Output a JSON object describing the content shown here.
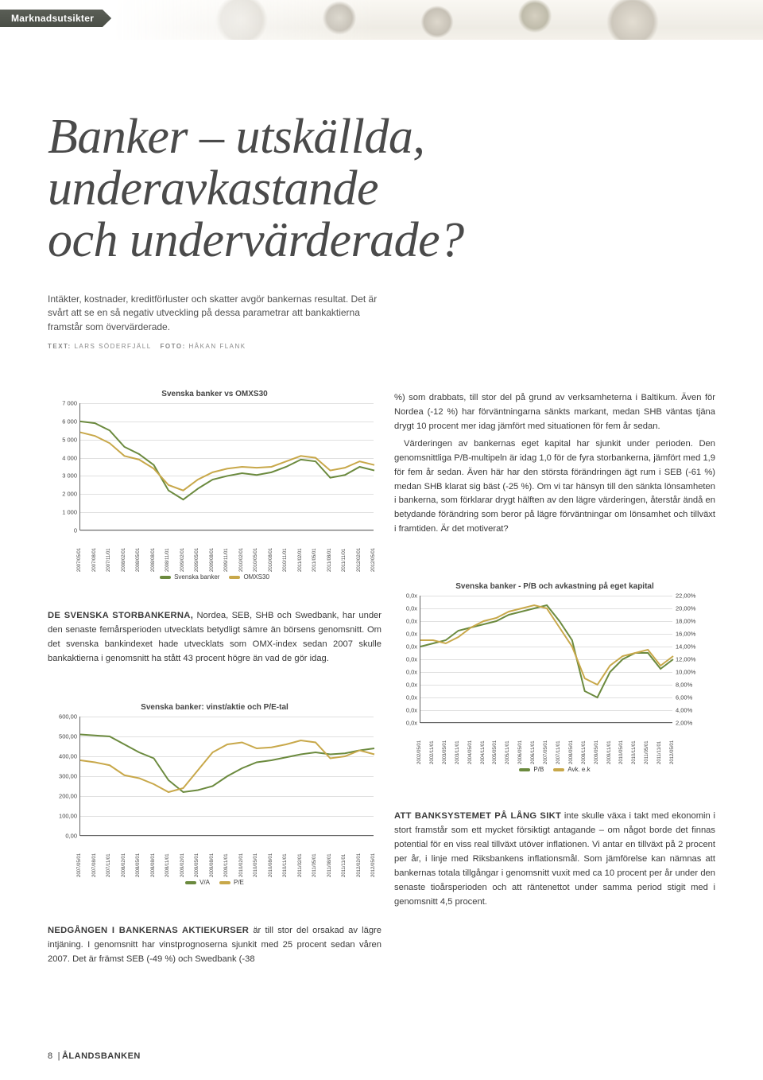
{
  "header_tag": "Marknadsutsikter",
  "title_line1": "Banker – utskällda,",
  "title_line2": "underavkastande",
  "title_line3": "och undervärderade?",
  "intro_text": "Intäkter, kostnader, kreditförluster och skatter avgör bankernas resultat. Det är svårt att se en så negativ utveckling på dessa parametrar att bankaktierna framstår som övervärderade.",
  "byline_label_text": "TEXT:",
  "byline_author": "LARS SÖDERFJÄLL",
  "byline_label_photo": "FOTO:",
  "byline_photographer": "HÅKAN FLANK",
  "chart1": {
    "title": "Svenska banker vs OMXS30",
    "type": "line",
    "y_ticks": [
      0,
      1000,
      2000,
      3000,
      4000,
      5000,
      6000,
      7000
    ],
    "y_tick_labels": [
      "0",
      "1 000",
      "2 000",
      "3 000",
      "4 000",
      "5 000",
      "6 000",
      "7 000"
    ],
    "ylim": [
      0,
      7000
    ],
    "x_labels": [
      "2007/05/01",
      "2007/08/01",
      "2007/11/01",
      "2008/02/01",
      "2008/05/01",
      "2008/08/01",
      "2008/11/01",
      "2009/02/01",
      "2009/05/01",
      "2009/08/01",
      "2009/11/01",
      "2010/02/01",
      "2010/05/01",
      "2010/08/01",
      "2010/11/01",
      "2011/02/01",
      "2011/05/01",
      "2011/08/01",
      "2011/11/01",
      "2012/02/01",
      "2012/05/01"
    ],
    "series": [
      {
        "name": "Svenska banker",
        "legend": "Svenska banker",
        "color": "#6b8a3e",
        "values": [
          6000,
          5900,
          5500,
          4600,
          4200,
          3600,
          2200,
          1700,
          2300,
          2800,
          3000,
          3150,
          3050,
          3200,
          3500,
          3900,
          3800,
          2900,
          3050,
          3500,
          3300
        ]
      },
      {
        "name": "OMXS30",
        "legend": "OMXS30",
        "color": "#c8a84a",
        "values": [
          5400,
          5200,
          4800,
          4100,
          3900,
          3400,
          2500,
          2200,
          2800,
          3200,
          3400,
          3500,
          3450,
          3500,
          3800,
          4100,
          4000,
          3300,
          3450,
          3800,
          3600
        ]
      }
    ],
    "grid_color": "#e0e0e0",
    "background": "#ffffff",
    "label_fontsize": 7
  },
  "body_left1": {
    "lead": "DE SVENSKA STORBANKERNA,",
    "text": " Nordea, SEB, SHB och Swedbank, har under den senaste femårsperioden utvecklats betydligt sämre än börsens genomsnitt. Om det svenska bankindexet hade utvecklats som OMX-index sedan 2007 skulle bankaktierna i genomsnitt ha stått 43 procent högre än vad de gör idag."
  },
  "chart2": {
    "title": "Svenska banker: vinst/aktie och P/E-tal",
    "type": "line",
    "y_ticks": [
      0,
      100,
      200,
      300,
      400,
      500,
      600
    ],
    "y_tick_labels": [
      "0,00",
      "100,00",
      "200,00",
      "300,00",
      "400,00",
      "500,00",
      "600,00"
    ],
    "ylim": [
      0,
      600
    ],
    "x_labels": [
      "2007/05/01",
      "2007/08/01",
      "2007/11/01",
      "2008/02/01",
      "2008/05/01",
      "2008/08/01",
      "2008/11/01",
      "2009/02/01",
      "2009/05/01",
      "2009/08/01",
      "2009/11/01",
      "2010/02/01",
      "2010/05/01",
      "2010/08/01",
      "2010/11/01",
      "2011/02/01",
      "2011/05/01",
      "2011/08/01",
      "2011/11/01",
      "2012/02/01",
      "2012/05/01"
    ],
    "series": [
      {
        "name": "V/A",
        "legend": "V/A",
        "color": "#6b8a3e",
        "values": [
          510,
          505,
          500,
          460,
          420,
          390,
          280,
          220,
          230,
          250,
          300,
          340,
          370,
          380,
          395,
          410,
          420,
          410,
          415,
          430,
          440
        ]
      },
      {
        "name": "P/E",
        "legend": "P/E",
        "color": "#c8a84a",
        "values": [
          380,
          370,
          355,
          305,
          290,
          260,
          220,
          240,
          330,
          420,
          460,
          470,
          440,
          445,
          460,
          480,
          470,
          390,
          400,
          430,
          410
        ]
      }
    ],
    "grid_color": "#e0e0e0",
    "background": "#ffffff",
    "label_fontsize": 7
  },
  "body_left2": {
    "lead": "NEDGÅNGEN I BANKERNAS AKTIEKURSER",
    "text": " är till stor del orsakad av lägre intjäning. I genomsnitt har vinstprognoserna sjunkit med 25 procent sedan våren 2007. Det är främst SEB (-49 %) och Swedbank (-38"
  },
  "right_col_para1": "%) som drabbats, till stor del på grund av verksamheterna i Baltikum. Även för Nordea (-12 %) har förväntningarna sänkts markant, medan SHB väntas tjäna drygt 10 procent mer idag jämfört med situationen för fem år sedan.",
  "right_col_para2": "Värderingen av bankernas eget kapital har sjunkit under perioden. Den genomsnittliga P/B-multipeln är idag 1,0 för de fyra storbankerna, jämfört med 1,9 för fem år sedan. Även här har den största förändringen ägt rum i SEB (-61 %) medan SHB klarat sig bäst (-25 %). Om vi tar hänsyn till den sänkta lönsamheten i bankerna, som förklarar drygt hälften av den lägre värderingen, återstår ändå en betydande förändring som beror på lägre förväntningar om lönsamhet och tillväxt i framtiden. Är det motiverat?",
  "chart3": {
    "title": "Svenska banker - P/B och avkastning på eget kapital",
    "type": "line-dual",
    "y_ticks_left": [
      0,
      1,
      2,
      3,
      4,
      5,
      6,
      7,
      8,
      9,
      10
    ],
    "y_tick_labels_left": [
      "0,0x",
      "0,0x",
      "0,0x",
      "0,0x",
      "0,0x",
      "0,0x",
      "0,0x",
      "0,0x",
      "0,0x",
      "0,0x",
      "0,0x"
    ],
    "ylim_left": [
      0,
      10
    ],
    "y_ticks_right": [
      2,
      4,
      6,
      8,
      10,
      12,
      14,
      16,
      18,
      20,
      22
    ],
    "y_tick_labels_right": [
      "2,00%",
      "4,00%",
      "6,00%",
      "8,00%",
      "10,00%",
      "12,00%",
      "14,00%",
      "16,00%",
      "18,00%",
      "20,00%",
      "22,00%"
    ],
    "ylim_right": [
      2,
      22
    ],
    "x_labels": [
      "2002/05/01",
      "2002/11/01",
      "2003/05/01",
      "2003/11/01",
      "2004/05/01",
      "2004/11/01",
      "2005/05/01",
      "2005/11/01",
      "2006/05/01",
      "2006/11/01",
      "2007/05/01",
      "2007/11/01",
      "2008/05/01",
      "2008/11/01",
      "2009/05/01",
      "2009/11/01",
      "2010/05/01",
      "2010/11/01",
      "2011/05/01",
      "2011/11/01",
      "2012/05/01"
    ],
    "series": [
      {
        "name": "P/B",
        "legend": "P/B",
        "color": "#6b8a3e",
        "axis": "right",
        "values": [
          14,
          14.5,
          15,
          16.5,
          17,
          17.5,
          18,
          19,
          19.5,
          20,
          20.5,
          18,
          15,
          7,
          6,
          10,
          12,
          13,
          13,
          10.5,
          12
        ]
      },
      {
        "name": "Avk. e.k",
        "legend": "Avk. e.k",
        "color": "#c8a84a",
        "axis": "right",
        "values": [
          15,
          15,
          14.5,
          15.5,
          17,
          18,
          18.5,
          19.5,
          20,
          20.5,
          20,
          17,
          14,
          9,
          8,
          11,
          12.5,
          13,
          13.5,
          11,
          12.5
        ]
      }
    ],
    "grid_color": "#e0e0e0",
    "background": "#ffffff",
    "label_fontsize": 7
  },
  "body_right2": {
    "lead": "ATT BANKSYSTEMET PÅ LÅNG SIKT",
    "text": " inte skulle växa i takt med ekonomin i stort framstår som ett mycket försiktigt antagande – om något borde det finnas potential för en viss real tillväxt utöver inflationen. Vi antar en tillväxt på 2 procent per år, i linje med Riksbankens inflationsmål. Som jämförelse kan nämnas att bankernas totala tillgångar i genomsnitt vuxit med ca 10 procent per år under den senaste tioårsperioden och att räntenettot under samma period stigit med i genomsnitt 4,5 procent."
  },
  "footer_page": "8",
  "footer_brand": "ÅLANDSBANKEN"
}
